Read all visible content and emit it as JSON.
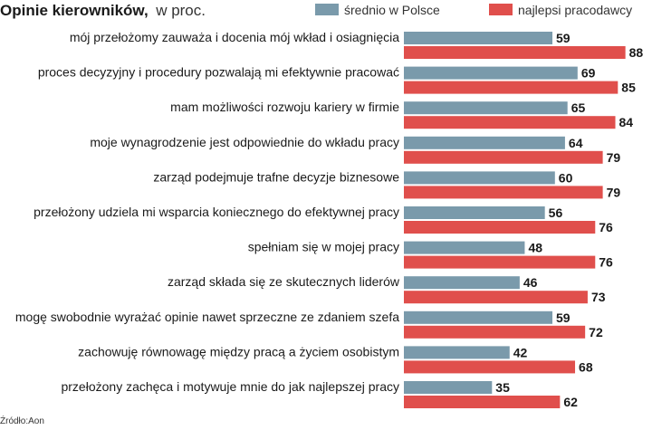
{
  "title": {
    "bold": "Opinie kierowników,",
    "light": "w proc."
  },
  "source": "Źródło:Aon",
  "colors": {
    "series1": "#7a9aab",
    "series2": "#e04f4c"
  },
  "chart_data": {
    "type": "bar",
    "orientation": "horizontal",
    "title": "Opinie kierowników, w proc.",
    "legend_position": "top-right",
    "xlim": [
      0,
      100
    ],
    "grid": false,
    "categories": [
      "mój przełożomy zauważa i docenia mój wkład i osiagnięcia",
      "proces decyzyjny i procedury pozwalają mi efektywnie pracować",
      "mam  możliwości rozwoju kariery w firmie",
      "moje wynagrodzenie jest odpowiednie do wkładu pracy",
      "zarząd podejmuje trafne decyzje biznesowe",
      "przełożony udziela mi wsparcia koniecznego do efektywnej pracy",
      "spełniam się w mojej  pracy",
      "zarząd składa się ze skutecznych liderów",
      "mogę swobodnie wyrażać opinie nawet sprzeczne ze zdaniem szefa",
      "zachowuję równowagę między pracą a życiem osobistym",
      "przełożony zachęca i motywuje mnie do jak najlepszej pracy"
    ],
    "series": [
      {
        "name": "średnio w Polsce",
        "values": [
          59,
          69,
          65,
          64,
          60,
          56,
          48,
          46,
          59,
          42,
          35
        ]
      },
      {
        "name": "najlepsi pracodawcy",
        "values": [
          88,
          85,
          84,
          79,
          79,
          76,
          76,
          73,
          72,
          68,
          62
        ]
      }
    ]
  }
}
